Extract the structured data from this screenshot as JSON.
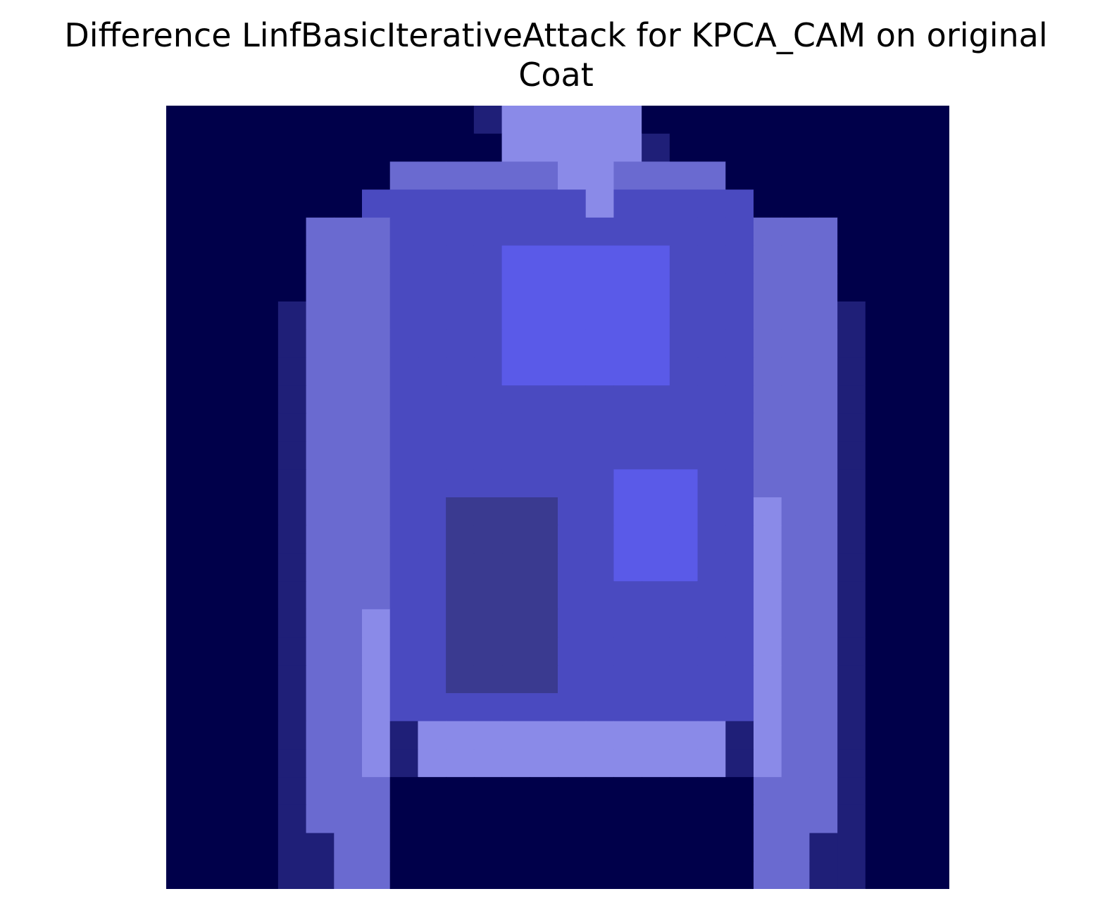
{
  "title": {
    "line1": "Difference LinfBasicIterativeAttack for KPCA_CAM on original",
    "line2": "Coat"
  },
  "image": {
    "subject": "coat",
    "grid_rows": 28,
    "grid_cols": 28,
    "palette": {
      "background": "#00004a",
      "edge": "#000040",
      "outline": "#1f1f78",
      "body": "#4a4ac0",
      "bright": "#5a5ae8",
      "sleeve": "#6a6ad0",
      "highlight": "#8a8ae8",
      "dark_patch": "#3a3a90"
    }
  }
}
